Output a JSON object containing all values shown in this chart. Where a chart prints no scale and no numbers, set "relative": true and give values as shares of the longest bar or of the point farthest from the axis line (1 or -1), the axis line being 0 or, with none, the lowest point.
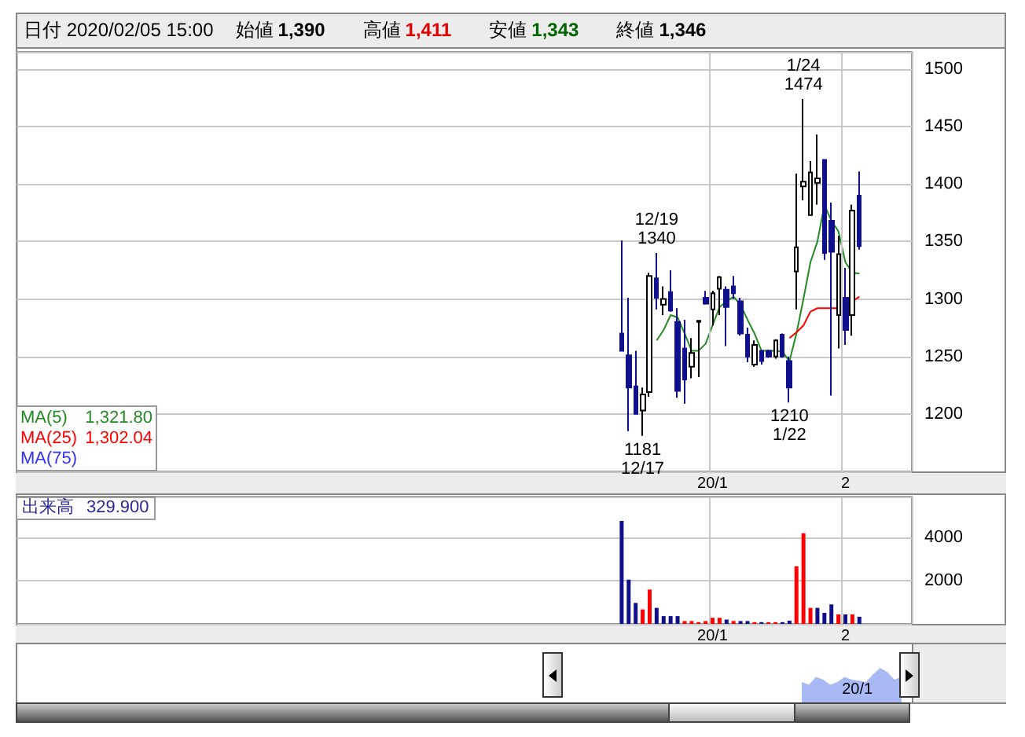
{
  "chart_data": [
    {
      "type": "candlestick",
      "title": "日付 2020/02/05 15:00",
      "annotations": [
        "始値",
        "1,390",
        "高値",
        "1,411",
        "安値",
        "1,343",
        "終値",
        "1,346",
        "1,321.80",
        "1,302.04",
        {
          "text": "12/19\n1340",
          "y": 1340
        },
        {
          "text": "1181\n12/17",
          "y": 1181
        },
        {
          "text": "1210\n1/22",
          "y": 1210
        },
        {
          "text": "1/24\n1474",
          "y": 1474
        }
      ],
      "categories": [
        null,
        null,
        null,
        null,
        null,
        null,
        null,
        null,
        null,
        null,
        null,
        null,
        null,
        null,
        null,
        null,
        null,
        null,
        null,
        null,
        null,
        null,
        null,
        null,
        null,
        null,
        null,
        null,
        null,
        null,
        null,
        null,
        null,
        null,
        null,
        null,
        null,
        null,
        null,
        null,
        null,
        null,
        null,
        null,
        null,
        null,
        null,
        null,
        null,
        null,
        null,
        null,
        null,
        null,
        null,
        null,
        null,
        null,
        null,
        null,
        null,
        null,
        null,
        null,
        null,
        null,
        null,
        null,
        null,
        null,
        null,
        null,
        null,
        null,
        null,
        null,
        null,
        null,
        null,
        null,
        null,
        null,
        null,
        null,
        null,
        null,
        null,
        null,
        null,
        null,
        null,
        null,
        null,
        null,
        null,
        null,
        null,
        null,
        null,
        "20/1",
        null,
        null,
        null,
        null,
        null,
        null,
        null,
        null,
        null,
        null,
        null,
        null,
        null,
        null,
        null,
        null,
        null,
        null,
        "2",
        null,
        null,
        null,
        null,
        null,
        null,
        null,
        null,
        null
      ],
      "ohlc": [
        null,
        null,
        null,
        null,
        null,
        null,
        null,
        null,
        null,
        null,
        null,
        null,
        null,
        null,
        null,
        null,
        null,
        null,
        null,
        null,
        null,
        null,
        null,
        null,
        null,
        null,
        null,
        null,
        null,
        null,
        null,
        null,
        null,
        null,
        null,
        null,
        null,
        null,
        null,
        null,
        null,
        null,
        null,
        null,
        null,
        null,
        null,
        null,
        null,
        null,
        null,
        null,
        null,
        null,
        null,
        null,
        null,
        null,
        null,
        null,
        null,
        null,
        null,
        null,
        null,
        null,
        null,
        null,
        null,
        null,
        null,
        null,
        null,
        null,
        null,
        null,
        null,
        null,
        null,
        null,
        null,
        null,
        null,
        null,
        null,
        null,
        [
          1270,
          1351,
          1255,
          1255
        ],
        [
          1251,
          1301,
          1185,
          1223
        ],
        [
          1224,
          1255,
          1200,
          1200
        ],
        [
          1203,
          1223,
          1181,
          1217
        ],
        [
          1219,
          1323,
          1215,
          1320
        ],
        [
          1318,
          1340,
          1291,
          1301
        ],
        [
          1295,
          1311,
          1286,
          1300
        ],
        [
          1306,
          1325,
          1289,
          1290
        ],
        [
          1280,
          1292,
          1214,
          1220
        ],
        [
          1257,
          1282,
          1209,
          1230
        ],
        [
          1241,
          1266,
          1231,
          1253
        ],
        [
          1280,
          1281,
          1232,
          1281
        ],
        [
          1301,
          1307,
          1295,
          1296
        ],
        [
          1291,
          1307,
          1277,
          1305
        ],
        [
          1309,
          1320,
          1286,
          1319
        ],
        [
          1308,
          1311,
          1259,
          1293
        ],
        [
          1311,
          1320,
          1300,
          1305
        ],
        [
          1298,
          1301,
          1268,
          1270
        ],
        [
          1269,
          1275,
          1245,
          1250
        ],
        [
          1243,
          1264,
          1241,
          1260
        ],
        [
          1255,
          1255,
          1243,
          1246
        ],
        [
          1255,
          1256,
          1249,
          1250
        ],
        [
          1250,
          1265,
          1248,
          1264
        ],
        [
          1269,
          1270,
          1249,
          1250
        ],
        [
          1246,
          1250,
          1210,
          1223
        ],
        [
          1324,
          1409,
          1291,
          1345
        ],
        [
          1398,
          1474,
          1386,
          1402
        ],
        [
          1373,
          1420,
          1373,
          1410
        ],
        [
          1401,
          1443,
          1382,
          1405
        ],
        [
          1421,
          1421,
          1334,
          1340
        ],
        [
          1368,
          1384,
          1216,
          1341
        ],
        [
          1286,
          1355,
          1257,
          1339
        ],
        [
          1301,
          1327,
          1260,
          1273
        ],
        [
          1286,
          1382,
          1268,
          1377
        ],
        [
          1390,
          1411,
          1343,
          1346
        ],
        null,
        null,
        null,
        null,
        null,
        null,
        null
      ],
      "colors": [
        null,
        null,
        null,
        null,
        null,
        null,
        null,
        null,
        null,
        null,
        null,
        null,
        null,
        null,
        null,
        null,
        null,
        null,
        null,
        null,
        null,
        null,
        null,
        null,
        null,
        null,
        null,
        null,
        null,
        null,
        null,
        null,
        null,
        null,
        null,
        null,
        null,
        null,
        null,
        null,
        null,
        null,
        null,
        null,
        null,
        null,
        null,
        null,
        null,
        null,
        null,
        null,
        null,
        null,
        null,
        null,
        null,
        null,
        null,
        null,
        null,
        null,
        null,
        null,
        null,
        null,
        null,
        null,
        null,
        null,
        null,
        null,
        null,
        null,
        null,
        null,
        null,
        null,
        null,
        null,
        null,
        null,
        null,
        null,
        null,
        null,
        "#10108c",
        "#10108c",
        "#10108c",
        "#ffffff",
        "#ffffff",
        "#10108c",
        "#ffffff",
        "#10108c",
        "#10108c",
        "#10108c",
        "#ffffff",
        "#ffffff",
        "#10108c",
        "#ffffff",
        "#ffffff",
        "#10108c",
        "#10108c",
        "#10108c",
        "#10108c",
        "#ffffff",
        "#10108c",
        "#10108c",
        "#ffffff",
        "#10108c",
        "#10108c",
        "#ffffff",
        "#ffffff",
        "#ffffff",
        "#ffffff",
        "#10108c",
        "#10108c",
        "#ffffff",
        "#10108c",
        "#ffffff",
        "#10108c",
        null,
        null,
        null,
        null,
        null,
        null,
        null
      ],
      "series": [
        {
          "type": "line",
          "name": "MA(5)",
          "color": "#228b22",
          "values": [
            null,
            null,
            null,
            null,
            null,
            null,
            null,
            null,
            null,
            null,
            null,
            null,
            null,
            null,
            null,
            null,
            null,
            null,
            null,
            null,
            null,
            null,
            null,
            null,
            null,
            null,
            null,
            null,
            null,
            null,
            null,
            null,
            null,
            null,
            null,
            null,
            null,
            null,
            null,
            null,
            null,
            null,
            null,
            null,
            null,
            null,
            null,
            null,
            null,
            null,
            null,
            null,
            null,
            null,
            null,
            null,
            null,
            null,
            null,
            null,
            null,
            null,
            null,
            null,
            null,
            null,
            null,
            null,
            null,
            null,
            null,
            null,
            null,
            null,
            null,
            null,
            null,
            null,
            null,
            null,
            null,
            null,
            null,
            null,
            null,
            null,
            null,
            null,
            null,
            null,
            null,
            1264,
            1273,
            1286,
            1284,
            1270,
            1255,
            1255,
            1261,
            1277,
            1293,
            1298,
            1302,
            1295,
            1282,
            1270,
            1255,
            1255,
            1255,
            1254,
            1246,
            1270,
            1300,
            1332,
            1350,
            1382,
            1368,
            1359,
            1332,
            1323,
            1322,
            null,
            null,
            null,
            null,
            null,
            null,
            null
          ]
        },
        {
          "type": "line",
          "name": "MA(25)",
          "color": "#ff0000",
          "values": [
            null,
            null,
            null,
            null,
            null,
            null,
            null,
            null,
            null,
            null,
            null,
            null,
            null,
            null,
            null,
            null,
            null,
            null,
            null,
            null,
            null,
            null,
            null,
            null,
            null,
            null,
            null,
            null,
            null,
            null,
            null,
            null,
            null,
            null,
            null,
            null,
            null,
            null,
            null,
            null,
            null,
            null,
            null,
            null,
            null,
            null,
            null,
            null,
            null,
            null,
            null,
            null,
            null,
            null,
            null,
            null,
            null,
            null,
            null,
            null,
            null,
            null,
            null,
            null,
            null,
            null,
            null,
            null,
            null,
            null,
            null,
            null,
            null,
            null,
            null,
            null,
            null,
            null,
            null,
            null,
            null,
            null,
            null,
            null,
            null,
            null,
            null,
            null,
            null,
            null,
            null,
            null,
            null,
            null,
            null,
            null,
            null,
            null,
            null,
            null,
            null,
            null,
            null,
            null,
            null,
            null,
            null,
            null,
            null,
            null,
            1266,
            1271,
            1277,
            1289,
            1292,
            1292,
            1292,
            1292,
            null,
            1298,
            1302,
            null,
            null,
            null,
            null,
            null,
            null,
            null
          ]
        },
        {
          "type": "line",
          "name": "MA(75)",
          "color": "#3030ff",
          "values": [
            null,
            null,
            null,
            null,
            null,
            null,
            null,
            null,
            null,
            null,
            null,
            null,
            null,
            null,
            null,
            null,
            null,
            null,
            null,
            null,
            null,
            null,
            null,
            null,
            null,
            null,
            null,
            null,
            null,
            null,
            null,
            null,
            null,
            null,
            null,
            null,
            null,
            null,
            null,
            null,
            null,
            null,
            null,
            null,
            null,
            null,
            null,
            null,
            null,
            null,
            null,
            null,
            null,
            null,
            null,
            null,
            null,
            null,
            null,
            null,
            null,
            null,
            null,
            null,
            null,
            null,
            null,
            null,
            null,
            null,
            null,
            null,
            null,
            null,
            null,
            null,
            null,
            null,
            null,
            null,
            null,
            null,
            null,
            null,
            null,
            null,
            null,
            null,
            null,
            null,
            null,
            null,
            null,
            null,
            null,
            null,
            null,
            null,
            null,
            null,
            null,
            null,
            null,
            null,
            null,
            null,
            null,
            null,
            null,
            null,
            null,
            null,
            null,
            null,
            null,
            null,
            null,
            null,
            null,
            null,
            null,
            null,
            null,
            null,
            null,
            null,
            null,
            null
          ]
        }
      ],
      "ylim": [
        1150,
        1515
      ],
      "yticks": [
        1200,
        1250,
        1300,
        1350,
        1400,
        1450,
        1500
      ],
      "grid": true,
      "legend": "bottom left"
    },
    {
      "type": "bar",
      "title": "出来高",
      "annotations": [
        "329.900"
      ],
      "categories": [
        null,
        null,
        null,
        null,
        null,
        null,
        null,
        null,
        null,
        null,
        null,
        null,
        null,
        null,
        null,
        null,
        null,
        null,
        null,
        null,
        null,
        null,
        null,
        null,
        null,
        null,
        null,
        null,
        null,
        null,
        null,
        null,
        null,
        null,
        null,
        null,
        null,
        null,
        null,
        null,
        null,
        null,
        null,
        null,
        null,
        null,
        null,
        null,
        null,
        null,
        null,
        null,
        null,
        null,
        null,
        null,
        null,
        null,
        null,
        null,
        null,
        null,
        null,
        null,
        null,
        null,
        null,
        null,
        null,
        null,
        null,
        null,
        null,
        null,
        null,
        null,
        null,
        null,
        null,
        null,
        null,
        null,
        null,
        null,
        null,
        null,
        null,
        null,
        null,
        null,
        null,
        null,
        null,
        null,
        null,
        null,
        null,
        null,
        null,
        "20/1",
        null,
        null,
        null,
        null,
        null,
        null,
        null,
        null,
        null,
        null,
        null,
        null,
        null,
        null,
        null,
        null,
        null,
        null,
        "2",
        null,
        null,
        null,
        null,
        null,
        null,
        null,
        null,
        null
      ],
      "values": [
        null,
        null,
        null,
        null,
        null,
        null,
        null,
        null,
        null,
        null,
        null,
        null,
        null,
        null,
        null,
        null,
        null,
        null,
        null,
        null,
        null,
        null,
        null,
        null,
        null,
        null,
        null,
        null,
        null,
        null,
        null,
        null,
        null,
        null,
        null,
        null,
        null,
        null,
        null,
        null,
        null,
        null,
        null,
        null,
        null,
        null,
        null,
        null,
        null,
        null,
        null,
        null,
        null,
        null,
        null,
        null,
        null,
        null,
        null,
        null,
        null,
        null,
        null,
        null,
        null,
        null,
        null,
        null,
        null,
        null,
        null,
        null,
        null,
        null,
        null,
        null,
        null,
        null,
        null,
        null,
        null,
        null,
        null,
        null,
        null,
        null,
        4770,
        2050,
        970,
        670,
        1590,
        740,
        360,
        360,
        360,
        130,
        130,
        80,
        130,
        280,
        280,
        200,
        130,
        130,
        130,
        80,
        80,
        80,
        80,
        80,
        150,
        2670,
        4200,
        740,
        740,
        510,
        900,
        440,
        440,
        440,
        330,
        null,
        null,
        null,
        null,
        null,
        null,
        null
      ],
      "colors": [
        null,
        null,
        null,
        null,
        null,
        null,
        null,
        null,
        null,
        null,
        null,
        null,
        null,
        null,
        null,
        null,
        null,
        null,
        null,
        null,
        null,
        null,
        null,
        null,
        null,
        null,
        null,
        null,
        null,
        null,
        null,
        null,
        null,
        null,
        null,
        null,
        null,
        null,
        null,
        null,
        null,
        null,
        null,
        null,
        null,
        null,
        null,
        null,
        null,
        null,
        null,
        null,
        null,
        null,
        null,
        null,
        null,
        null,
        null,
        null,
        null,
        null,
        null,
        null,
        null,
        null,
        null,
        null,
        null,
        null,
        null,
        null,
        null,
        null,
        null,
        null,
        null,
        null,
        null,
        null,
        null,
        null,
        null,
        null,
        null,
        null,
        "#10108c",
        "#10108c",
        "#10108c",
        "#ff0000",
        "#ff0000",
        "#10108c",
        "#10108c",
        "#10108c",
        "#10108c",
        "#ff0000",
        "#ff0000",
        "#ff0000",
        "#ff0000",
        "#ff0000",
        "#ff0000",
        "#10108c",
        "#ff0000",
        "#10108c",
        "#10108c",
        "#ff0000",
        "#10108c",
        "#ff0000",
        "#ff0000",
        "#10108c",
        "#10108c",
        "#ff0000",
        "#ff0000",
        "#ff0000",
        "#10108c",
        "#10108c",
        "#10108c",
        "#ff0000",
        "#10108c",
        "#ff0000",
        "#10108c",
        null,
        null,
        null,
        null,
        null,
        null,
        null
      ],
      "ylim": [
        0,
        5900
      ],
      "yticks": [
        2000,
        4000
      ],
      "grid": true
    },
    {
      "type": "area",
      "relative": true,
      "color": "#a9b9f5",
      "annotations": [
        "20/1"
      ],
      "categories": [
        null,
        null,
        null,
        null,
        null,
        null,
        null,
        null,
        null,
        null,
        null,
        null,
        null,
        null,
        null,
        null
      ],
      "values": [
        0.59,
        0.51,
        0.74,
        0.66,
        0.51,
        0.59,
        0.74,
        0.66,
        0.63,
        0.59,
        0.81,
        1,
        0.88,
        0.66,
        0.74,
        null
      ]
    }
  ]
}
